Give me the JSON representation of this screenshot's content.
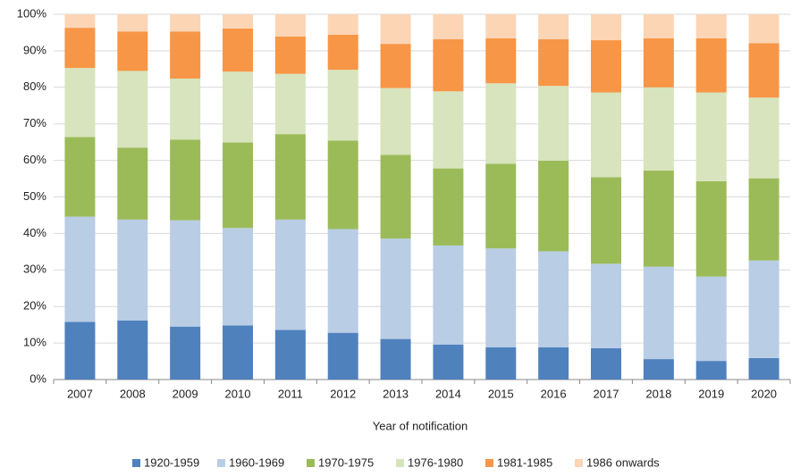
{
  "chart_data": {
    "type": "stacked_bar",
    "x_label": "Year of notification",
    "categories": [
      "2007",
      "2008",
      "2009",
      "2010",
      "2011",
      "2012",
      "2013",
      "2014",
      "2015",
      "2016",
      "2017",
      "2018",
      "2019",
      "2020"
    ],
    "series": [
      {
        "name": "1920-1959",
        "color": "#4f81bd",
        "values": [
          15.8,
          16.2,
          14.5,
          14.8,
          13.6,
          12.8,
          11.1,
          9.6,
          8.8,
          8.8,
          8.6,
          5.6,
          5.1,
          5.9
        ]
      },
      {
        "name": "1960-1969",
        "color": "#b9cde5",
        "values": [
          28.8,
          27.6,
          29.1,
          26.7,
          30.2,
          28.4,
          27.5,
          27.1,
          27.1,
          26.3,
          23.1,
          25.3,
          23.1,
          26.7
        ]
      },
      {
        "name": "1970-1975",
        "color": "#9bbb59",
        "values": [
          21.8,
          19.7,
          22.1,
          23.4,
          23.4,
          24.2,
          22.9,
          21.1,
          23.2,
          24.8,
          23.7,
          26.3,
          26.1,
          22.5
        ]
      },
      {
        "name": "1976-1980",
        "color": "#d7e4bd",
        "values": [
          18.9,
          21.0,
          16.7,
          19.4,
          16.5,
          19.4,
          18.3,
          21.1,
          22.0,
          20.5,
          23.2,
          22.8,
          24.3,
          22.1
        ]
      },
      {
        "name": "1981-1985",
        "color": "#f79646",
        "values": [
          11.0,
          10.8,
          12.9,
          11.8,
          10.2,
          9.6,
          12.1,
          14.3,
          12.3,
          12.8,
          14.3,
          13.4,
          14.8,
          14.9
        ]
      },
      {
        "name": "1986 onwards",
        "color": "#fcd5b5",
        "values": [
          3.7,
          4.7,
          4.7,
          3.9,
          6.1,
          5.6,
          8.1,
          6.8,
          6.6,
          6.8,
          7.1,
          6.6,
          6.6,
          7.9
        ]
      }
    ],
    "ylim": [
      0,
      100
    ],
    "yticks": [
      {
        "value": 0,
        "label": "0%"
      },
      {
        "value": 10,
        "label": "10%"
      },
      {
        "value": 20,
        "label": "20%"
      },
      {
        "value": 30,
        "label": "30%"
      },
      {
        "value": 40,
        "label": "40%"
      },
      {
        "value": 50,
        "label": "50%"
      },
      {
        "value": 60,
        "label": "60%"
      },
      {
        "value": 70,
        "label": "70%"
      },
      {
        "value": 80,
        "label": "80%"
      },
      {
        "value": 90,
        "label": "90%"
      },
      {
        "value": 100,
        "label": "100%"
      }
    ],
    "grid": true,
    "legend": "bottom"
  }
}
